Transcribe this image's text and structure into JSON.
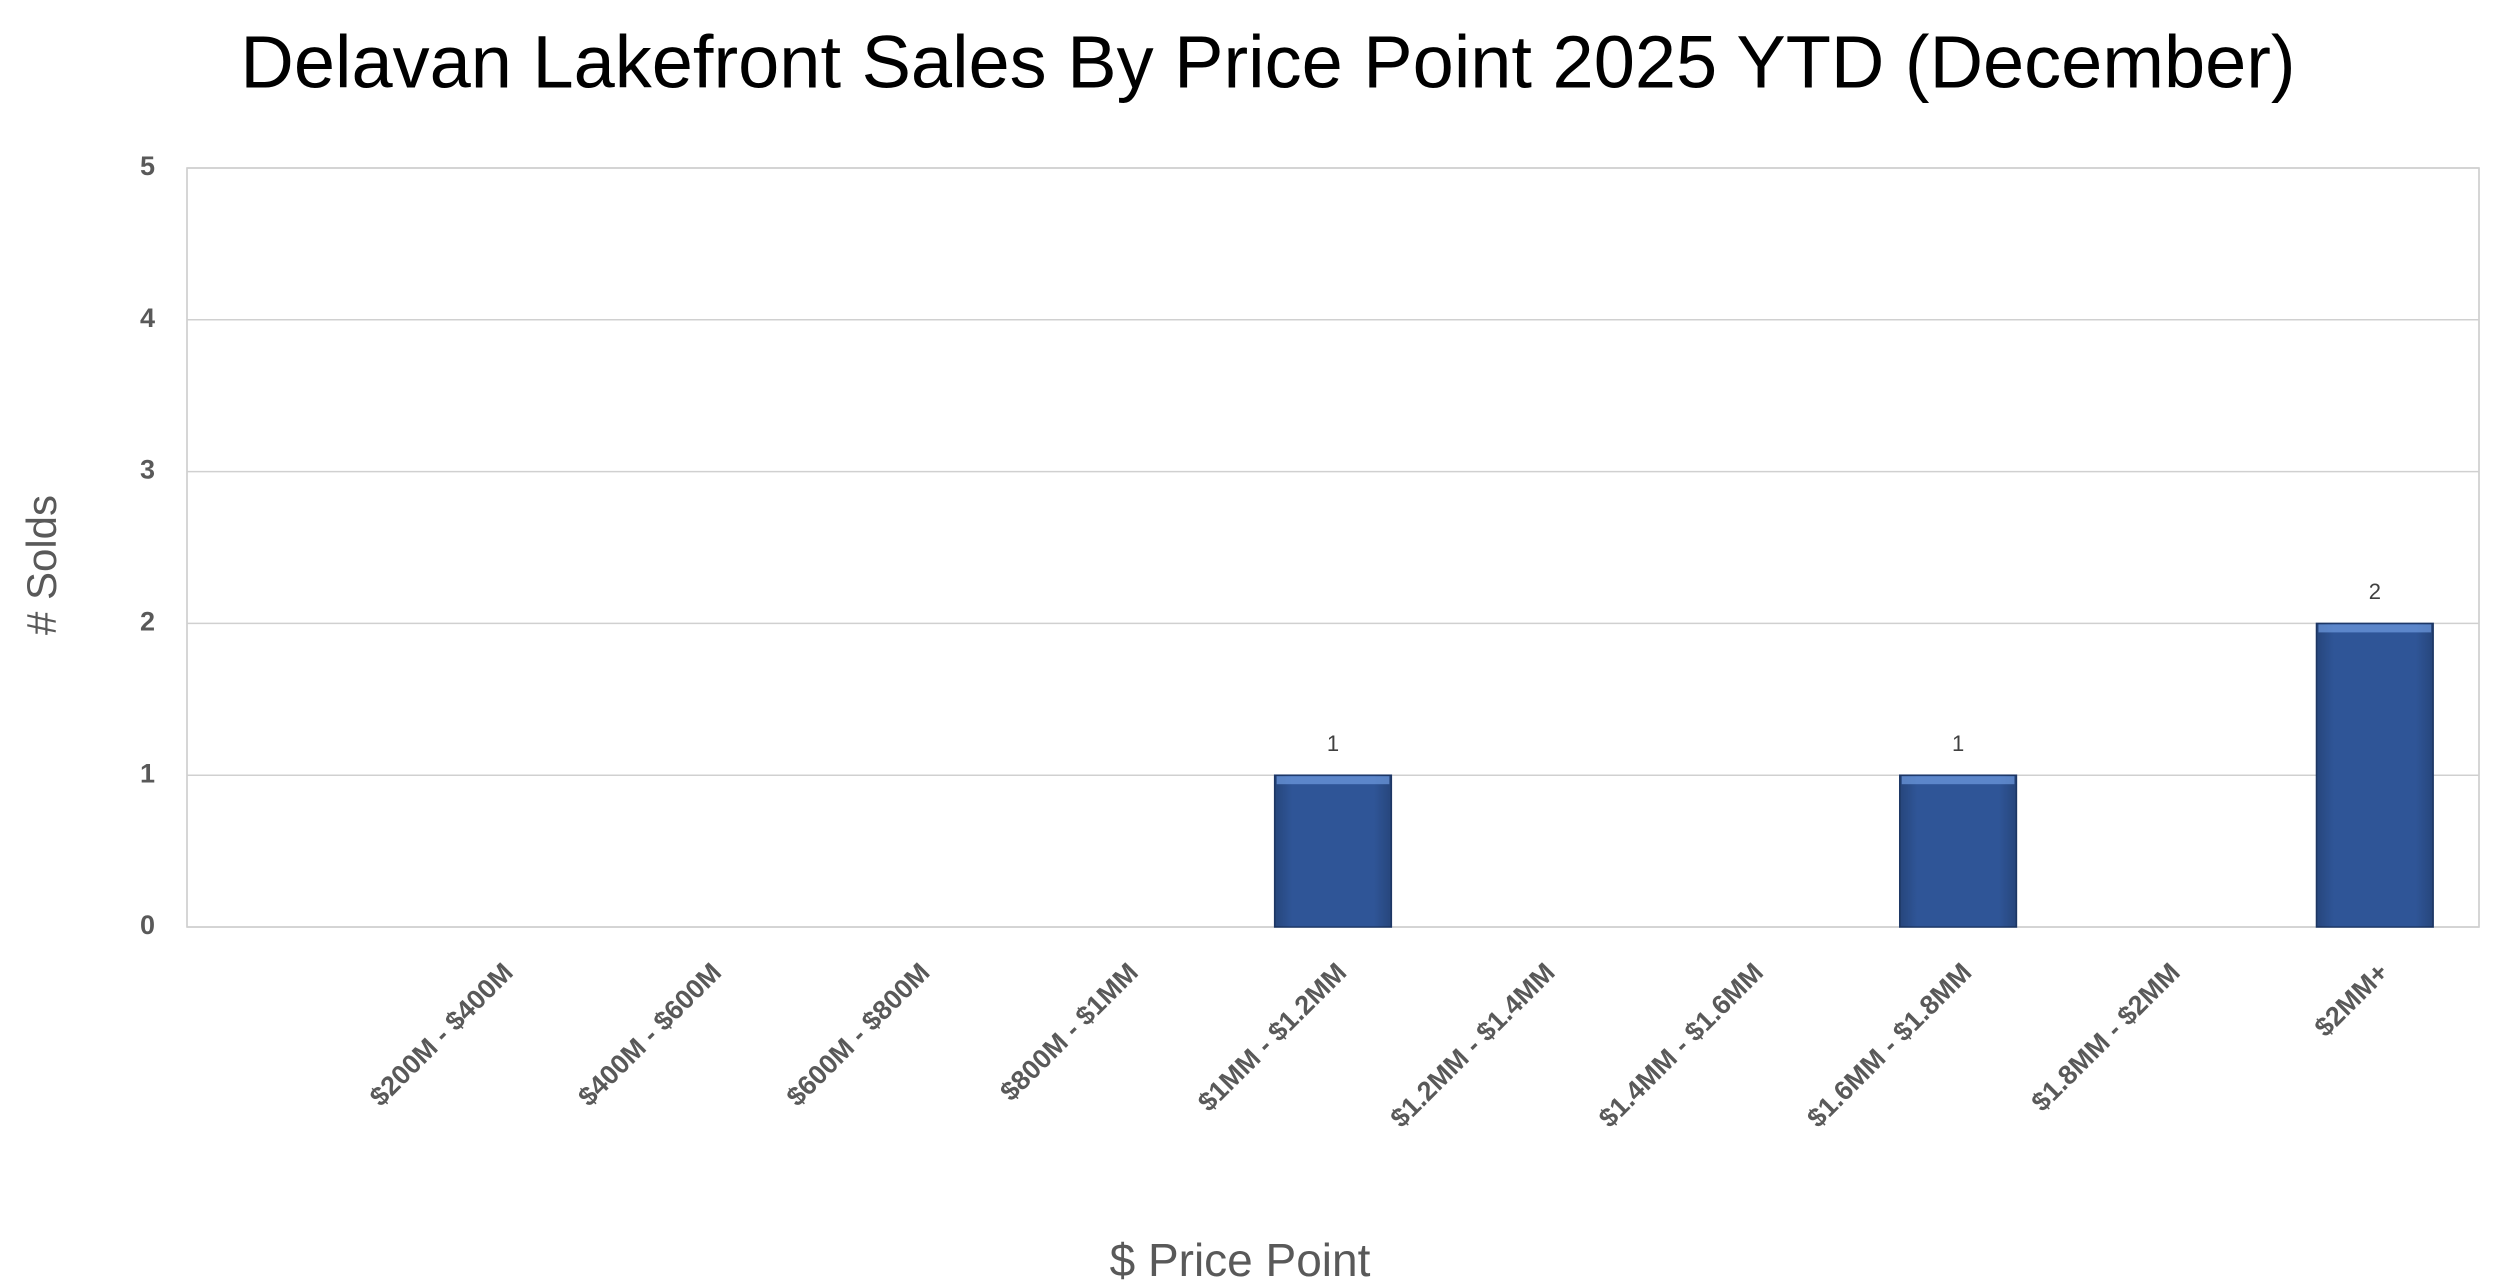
{
  "chart_data": {
    "type": "bar",
    "title": "Delavan Lakefront Sales By Price Point 2025 YTD (December)",
    "x_label": "$ Price Point",
    "y_label": "# Solds",
    "categories": [
      null,
      "$200M - $400M",
      "$400M - $600M",
      "$600M - $800M",
      "$800M - $1MM",
      "$1MM - $1.2MM",
      "$1.2MM - $1.4MM",
      "$1.4MM - $1.6MM",
      "$1.6MM - $1.8MM",
      "$1.8MM - $2MM",
      "$2MM+"
    ],
    "values": [
      0,
      0,
      0,
      0,
      0,
      1,
      0,
      0,
      1,
      0,
      2
    ],
    "value_labels": [
      null,
      null,
      null,
      null,
      null,
      "1",
      null,
      null,
      "1",
      null,
      "2"
    ],
    "color": "#2f5597",
    "ylim": [
      0,
      5
    ],
    "yticks": [
      0,
      1,
      2,
      3,
      4,
      5
    ],
    "grid": true
  }
}
